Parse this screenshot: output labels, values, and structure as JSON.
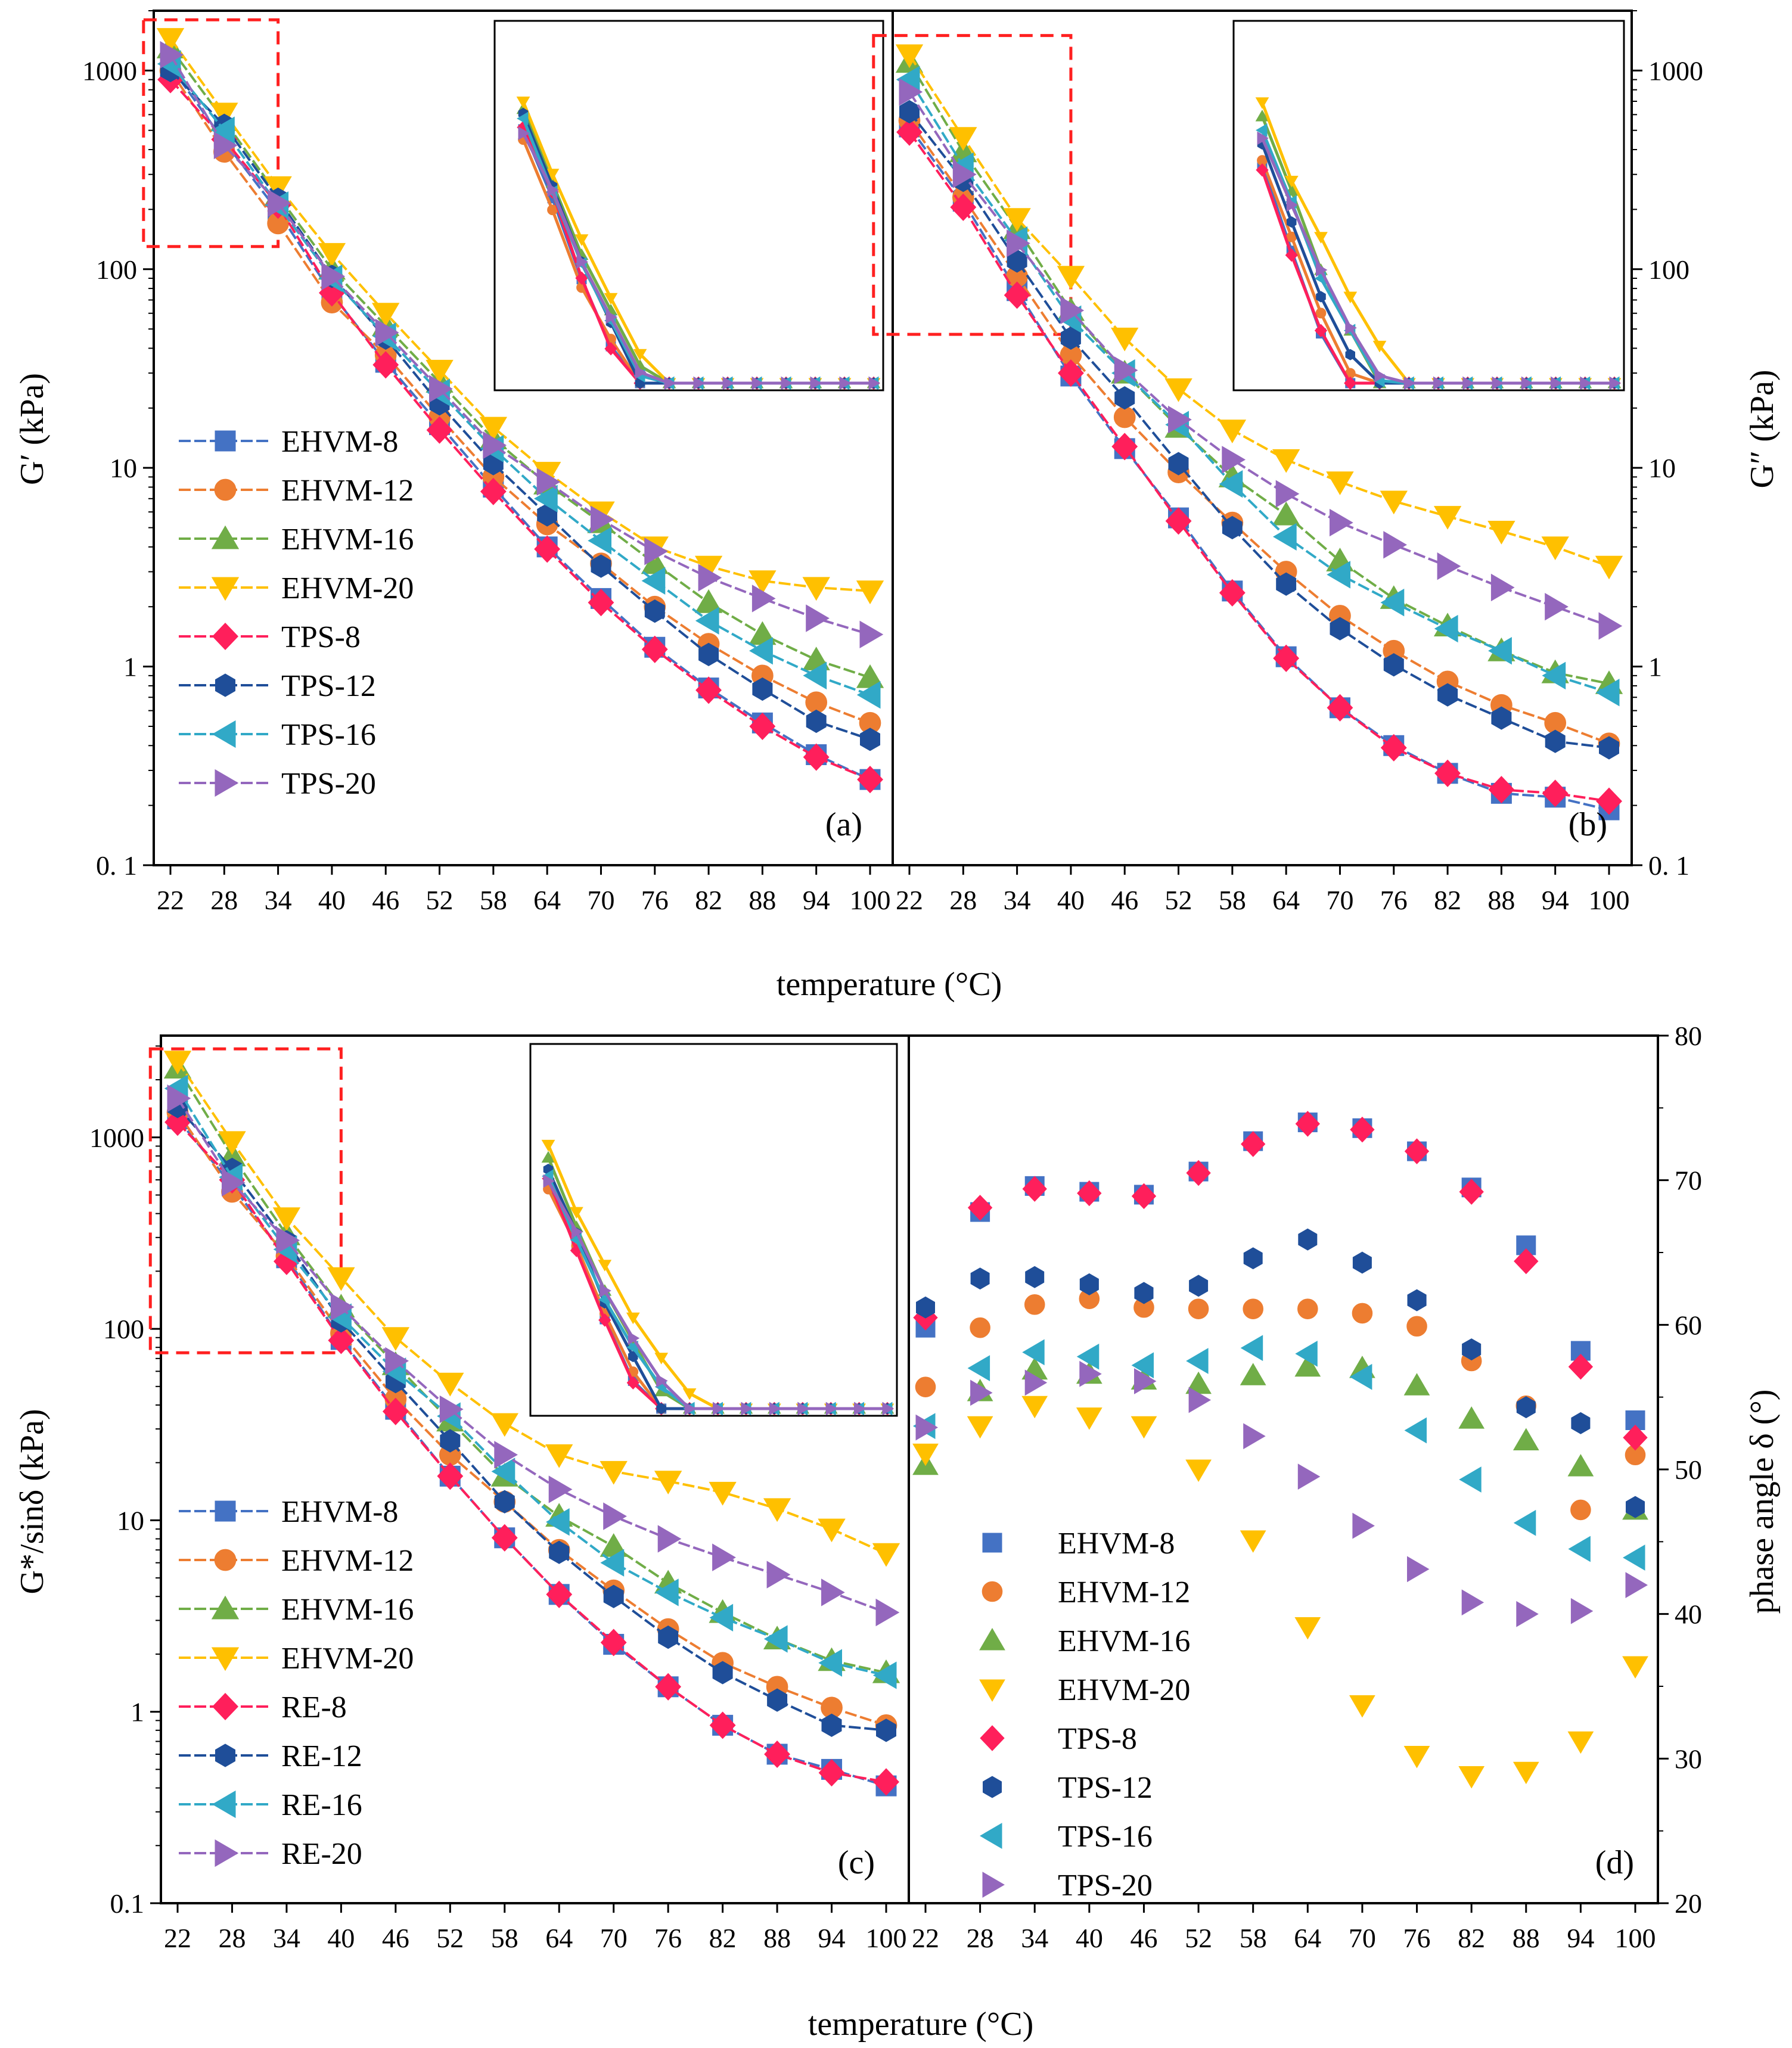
{
  "axis_labels": {
    "x": "temperature (°C)",
    "a_y": "G′ (kPa)",
    "b_y": "G″ (kPa)",
    "c_y": "G*/sinδ (kPa)",
    "d_y": "phase angle δ (°)"
  },
  "chart_data": [
    {
      "id": "a",
      "type": "line",
      "label": "(a)",
      "ylabel": "G′ (kPa)",
      "xlabel": "temperature (°C)",
      "yscale": "log",
      "ylim": [
        0.1,
        2000
      ],
      "x": [
        22,
        28,
        34,
        40,
        46,
        52,
        58,
        64,
        70,
        76,
        82,
        88,
        94,
        100
      ],
      "series": [
        {
          "name": "EHVM-8",
          "color": "#4472C4",
          "marker": "square",
          "values": [
            1050,
            440,
            195,
            75,
            34,
            16.5,
            8.0,
            4.0,
            2.2,
            1.25,
            0.78,
            0.52,
            0.36,
            0.27
          ]
        },
        {
          "name": "EHVM-12",
          "color": "#ED7D31",
          "marker": "circle",
          "values": [
            1000,
            390,
            170,
            68,
            37,
            18,
            9.0,
            5.2,
            3.3,
            2.0,
            1.3,
            0.9,
            0.66,
            0.52
          ]
        },
        {
          "name": "EHVM-16",
          "color": "#70AD47",
          "marker": "triangle-up",
          "values": [
            1300,
            560,
            235,
            100,
            52,
            27,
            14,
            8.3,
            5.3,
            3.3,
            2.1,
            1.45,
            1.08,
            0.88
          ]
        },
        {
          "name": "EHVM-20",
          "color": "#FFC000",
          "marker": "triangle-down",
          "values": [
            1450,
            610,
            260,
            120,
            60,
            31,
            16,
            9.5,
            6.0,
            4.0,
            3.2,
            2.7,
            2.5,
            2.4
          ]
        },
        {
          "name": "TPS-8",
          "color": "#FF1F5B",
          "marker": "diamond",
          "values": [
            900,
            450,
            210,
            76,
            33,
            15.5,
            7.6,
            3.9,
            2.1,
            1.22,
            0.76,
            0.5,
            0.35,
            0.27
          ]
        },
        {
          "name": "TPS-12",
          "color": "#1F4E99",
          "marker": "hexagon",
          "values": [
            1000,
            530,
            225,
            92,
            45,
            21,
            10.5,
            5.8,
            3.2,
            1.9,
            1.15,
            0.77,
            0.53,
            0.43
          ]
        },
        {
          "name": "TPS-16",
          "color": "#31A9C7",
          "marker": "triangle-left",
          "values": [
            1080,
            500,
            210,
            90,
            46,
            24,
            12.5,
            7.0,
            4.3,
            2.7,
            1.7,
            1.2,
            0.9,
            0.72
          ]
        },
        {
          "name": "TPS-20",
          "color": "#9467BD",
          "marker": "triangle-right",
          "values": [
            1200,
            420,
            215,
            92,
            48,
            25,
            13,
            8.5,
            5.5,
            3.8,
            2.8,
            2.2,
            1.75,
            1.45
          ]
        }
      ]
    },
    {
      "id": "b",
      "type": "line",
      "label": "(b)",
      "ylabel": "G″ (kPa)",
      "xlabel": "temperature (°C)",
      "yscale": "log",
      "ylim": [
        0.1,
        2000
      ],
      "x": [
        22,
        28,
        34,
        40,
        46,
        52,
        58,
        64,
        70,
        76,
        82,
        88,
        94,
        100
      ],
      "series": [
        {
          "name": "EHVM-8",
          "color": "#4472C4",
          "marker": "square",
          "values": [
            520,
            220,
            78,
            29,
            12.5,
            5.6,
            2.4,
            1.12,
            0.62,
            0.4,
            0.29,
            0.23,
            0.22,
            0.19
          ]
        },
        {
          "name": "EHVM-12",
          "color": "#ED7D31",
          "marker": "circle",
          "values": [
            560,
            230,
            92,
            37,
            18,
            9.5,
            5.3,
            3.0,
            1.8,
            1.2,
            0.84,
            0.64,
            0.52,
            0.41
          ]
        },
        {
          "name": "EHVM-16",
          "color": "#70AD47",
          "marker": "triangle-up",
          "values": [
            1100,
            390,
            160,
            62,
            30,
            16,
            9.0,
            5.8,
            3.4,
            2.2,
            1.6,
            1.2,
            0.93,
            0.82
          ]
        },
        {
          "name": "EHVM-20",
          "color": "#FFC000",
          "marker": "triangle-down",
          "values": [
            1200,
            460,
            180,
            92,
            45,
            25,
            15.5,
            11,
            8.5,
            6.8,
            5.7,
            4.8,
            4.0,
            3.2
          ]
        },
        {
          "name": "TPS-8",
          "color": "#FF1F5B",
          "marker": "diamond",
          "values": [
            490,
            205,
            74,
            30,
            12.8,
            5.4,
            2.35,
            1.1,
            0.62,
            0.39,
            0.29,
            0.24,
            0.23,
            0.21
          ]
        },
        {
          "name": "TPS-12",
          "color": "#1F4E99",
          "marker": "hexagon",
          "values": [
            620,
            280,
            110,
            45,
            22.5,
            10.5,
            5.0,
            2.6,
            1.55,
            1.02,
            0.72,
            0.55,
            0.42,
            0.39
          ]
        },
        {
          "name": "TPS-16",
          "color": "#31A9C7",
          "marker": "triangle-left",
          "values": [
            900,
            330,
            140,
            56,
            30,
            16.5,
            8.3,
            4.5,
            2.9,
            2.1,
            1.55,
            1.2,
            0.9,
            0.74
          ]
        },
        {
          "name": "TPS-20",
          "color": "#9467BD",
          "marker": "triangle-right",
          "values": [
            780,
            300,
            135,
            62,
            31,
            17.5,
            11,
            7.4,
            5.3,
            4.1,
            3.2,
            2.5,
            2.0,
            1.6
          ]
        }
      ]
    },
    {
      "id": "c",
      "type": "line",
      "label": "(c)",
      "ylabel": "G*/sinδ (kPa)",
      "xlabel": "temperature (°C)",
      "yscale": "log",
      "ylim": [
        0.1,
        3400
      ],
      "x": [
        22,
        28,
        34,
        40,
        46,
        52,
        58,
        64,
        70,
        76,
        82,
        88,
        94,
        100
      ],
      "series": [
        {
          "name": "EHVM-8",
          "color": "#4472C4",
          "marker": "square",
          "values": [
            1250,
            560,
            235,
            88,
            38,
            17,
            8.1,
            4.1,
            2.25,
            1.35,
            0.85,
            0.6,
            0.5,
            0.41
          ]
        },
        {
          "name": "EHVM-12",
          "color": "#ED7D31",
          "marker": "circle",
          "values": [
            1350,
            520,
            240,
            95,
            43,
            22,
            12.5,
            7.0,
            4.3,
            2.7,
            1.8,
            1.35,
            1.05,
            0.85
          ]
        },
        {
          "name": "EHVM-16",
          "color": "#70AD47",
          "marker": "triangle-up",
          "values": [
            2300,
            800,
            310,
            130,
            65,
            33,
            17,
            10.5,
            7.3,
            4.7,
            3.3,
            2.4,
            1.85,
            1.6
          ]
        },
        {
          "name": "EHVM-20",
          "color": "#FFC000",
          "marker": "triangle-down",
          "values": [
            2500,
            950,
            380,
            185,
            90,
            52,
            32,
            22,
            18,
            16,
            14,
            11.5,
            9.0,
            6.7
          ]
        },
        {
          "name": "RE-8",
          "color": "#FF1F5B",
          "marker": "diamond",
          "values": [
            1200,
            600,
            225,
            87,
            37,
            17,
            8.1,
            4.1,
            2.3,
            1.35,
            0.85,
            0.6,
            0.48,
            0.43
          ]
        },
        {
          "name": "RE-12",
          "color": "#1F4E99",
          "marker": "hexagon",
          "values": [
            1450,
            680,
            285,
            110,
            53,
            26,
            12.5,
            6.8,
            4.0,
            2.45,
            1.6,
            1.15,
            0.85,
            0.8
          ]
        },
        {
          "name": "RE-16",
          "color": "#31A9C7",
          "marker": "triangle-left",
          "values": [
            1800,
            620,
            260,
            115,
            60,
            35,
            18,
            9.8,
            6.0,
            4.2,
            3.1,
            2.4,
            1.8,
            1.55
          ]
        },
        {
          "name": "RE-20",
          "color": "#9467BD",
          "marker": "triangle-right",
          "values": [
            1600,
            580,
            290,
            130,
            68,
            38,
            22,
            14.5,
            10.5,
            8.0,
            6.4,
            5.2,
            4.2,
            3.3
          ]
        }
      ]
    },
    {
      "id": "d",
      "type": "scatter",
      "label": "(d)",
      "ylabel": "phase angle δ (°)",
      "xlabel": "temperature (°C)",
      "yscale": "linear",
      "ylim": [
        20,
        80
      ],
      "yticks": [
        20,
        30,
        40,
        50,
        60,
        70,
        80
      ],
      "x": [
        22,
        28,
        34,
        40,
        46,
        52,
        58,
        64,
        70,
        76,
        82,
        88,
        94,
        100
      ],
      "series": [
        {
          "name": "EHVM-8",
          "color": "#4472C4",
          "marker": "square",
          "values": [
            59.8,
            67.8,
            69.6,
            69.2,
            69.0,
            70.6,
            72.7,
            74.0,
            73.6,
            72.0,
            69.5,
            65.5,
            58.2,
            53.4
          ]
        },
        {
          "name": "EHVM-12",
          "color": "#ED7D31",
          "marker": "circle",
          "values": [
            55.7,
            59.8,
            61.4,
            61.8,
            61.2,
            61.1,
            61.1,
            61.1,
            60.8,
            59.9,
            57.5,
            54.4,
            47.2,
            51.0
          ]
        },
        {
          "name": "EHVM-16",
          "color": "#70AD47",
          "marker": "triangle-up",
          "values": [
            50.3,
            55.4,
            56.9,
            56.6,
            56.2,
            55.9,
            56.5,
            57.1,
            57.0,
            55.8,
            53.5,
            52.0,
            50.2,
            47.2
          ]
        },
        {
          "name": "EHVM-20",
          "color": "#FFC000",
          "marker": "triangle-down",
          "values": [
            51.1,
            53.0,
            54.4,
            53.6,
            53.0,
            50.0,
            45.1,
            39.1,
            33.7,
            30.2,
            28.8,
            29.1,
            31.2,
            36.4
          ]
        },
        {
          "name": "TPS-8",
          "color": "#FF1F5B",
          "marker": "diamond",
          "values": [
            60.5,
            68.1,
            69.4,
            69.1,
            68.9,
            70.5,
            72.5,
            73.9,
            73.5,
            72.0,
            69.2,
            64.4,
            57.1,
            52.2
          ]
        },
        {
          "name": "TPS-12",
          "color": "#1F4E99",
          "marker": "hexagon",
          "values": [
            61.2,
            63.2,
            63.3,
            62.8,
            62.2,
            62.7,
            64.6,
            65.9,
            64.3,
            61.7,
            58.3,
            54.3,
            53.2,
            47.4
          ]
        },
        {
          "name": "TPS-16",
          "color": "#31A9C7",
          "marker": "triangle-left",
          "values": [
            53.0,
            57.0,
            58.1,
            57.8,
            57.2,
            57.5,
            58.4,
            58.0,
            56.4,
            52.7,
            49.3,
            46.3,
            44.5,
            43.9
          ]
        },
        {
          "name": "TPS-20",
          "color": "#9467BD",
          "marker": "triangle-right",
          "values": [
            52.9,
            55.3,
            56.0,
            56.6,
            56.1,
            54.8,
            52.3,
            49.5,
            46.1,
            43.1,
            40.8,
            40.0,
            40.2,
            42.0
          ]
        }
      ]
    }
  ]
}
